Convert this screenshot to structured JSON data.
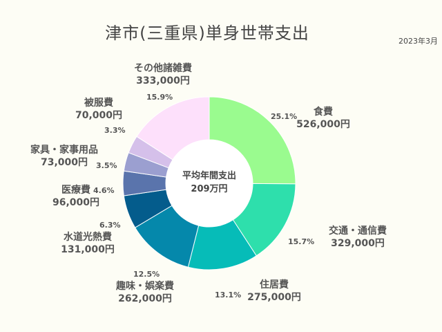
{
  "title": "津市(三重県)単身世帯支出",
  "date": "2023年3月",
  "center": {
    "line1": "平均年間支出",
    "line2": "209万円"
  },
  "chart_data": {
    "type": "pie",
    "title": "津市(三重県)単身世帯支出",
    "center_label": "平均年間支出 209万円",
    "legend": "none",
    "slices": [
      {
        "label": "食費",
        "amount": "526,000円",
        "value": 526000,
        "percent": "25.1%",
        "color": "#9afb8f"
      },
      {
        "label": "交通・通信費",
        "amount": "329,000円",
        "value": 329000,
        "percent": "15.7%",
        "color": "#2edfac"
      },
      {
        "label": "住居費",
        "amount": "275,000円",
        "value": 275000,
        "percent": "13.1%",
        "color": "#06bcb8"
      },
      {
        "label": "趣味・娯楽費",
        "amount": "262,000円",
        "value": 262000,
        "percent": "12.5%",
        "color": "#0588ab"
      },
      {
        "label": "水道光熱費",
        "amount": "131,000円",
        "value": 131000,
        "percent": "6.3%",
        "color": "#045c8c"
      },
      {
        "label": "医療費",
        "amount": "96,000円",
        "value": 96000,
        "percent": "4.6%",
        "color": "#5a74ac"
      },
      {
        "label": "家具・家事用品",
        "amount": "73,000円",
        "value": 73000,
        "percent": "3.5%",
        "color": "#9b9fd0"
      },
      {
        "label": "被服費",
        "amount": "70,000円",
        "value": 70000,
        "percent": "3.3%",
        "color": "#d5c0ea"
      },
      {
        "label": "その他諸雑費",
        "amount": "333,000円",
        "value": 333000,
        "percent": "15.9%",
        "color": "#fde0fb"
      }
    ]
  }
}
